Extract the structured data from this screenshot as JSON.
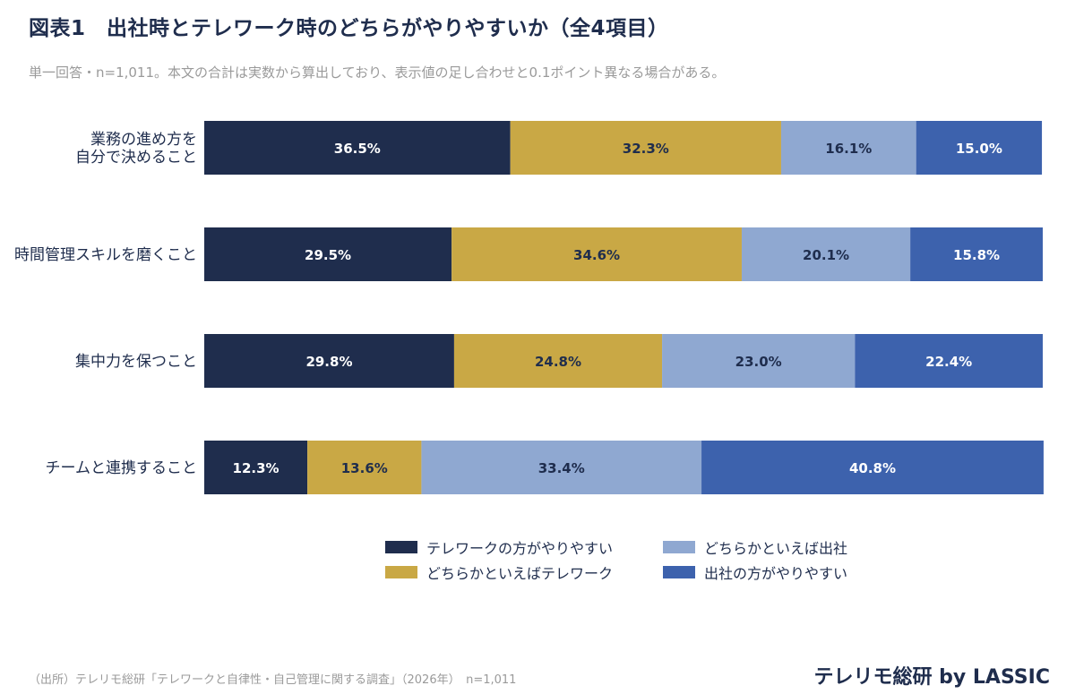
{
  "title": "図表1　出社時とテレワーク時のどちらがやりやすいか（全4項目）",
  "subtitle": "単一回答・n=1,011。本文の合計は実数から算出しており、表示値の足し合わせと0.1ポイント異なる場合がある。",
  "source": "（出所）テレリモ総研「テレワークと自律性・自己管理に関する調査」（2026年）　n=1,011",
  "brand": "テレリモ総研 by LASSIC",
  "chart_data": {
    "type": "bar",
    "orientation": "horizontal",
    "stacked": true,
    "normalized": true,
    "categories": [
      "業務の進め方を\n自分で決めること",
      "時間管理スキルを磨くこと",
      "集中力を保つこと",
      "チームと連携すること"
    ],
    "series": [
      {
        "name": "テレワークの方がやりやすい",
        "values": [
          36.5,
          29.5,
          29.8,
          12.3
        ],
        "color": "#1f2d4d",
        "label_color": "#ffffff"
      },
      {
        "name": "どちらかといえばテレワーク",
        "values": [
          32.3,
          34.6,
          24.8,
          13.6
        ],
        "color": "#c9a845",
        "label_color": "#1f2d4d"
      },
      {
        "name": "どちらかといえば出社",
        "values": [
          16.1,
          20.1,
          23.0,
          33.4
        ],
        "color": "#8fa8d1",
        "label_color": "#1f2d4d"
      },
      {
        "name": "出社の方がやりやすい",
        "values": [
          15.0,
          15.8,
          22.4,
          40.8
        ],
        "color": "#3d62ad",
        "label_color": "#ffffff"
      }
    ],
    "value_suffix": "%",
    "xlim": [
      0,
      100
    ],
    "grid": false,
    "legend_position": "bottom"
  }
}
